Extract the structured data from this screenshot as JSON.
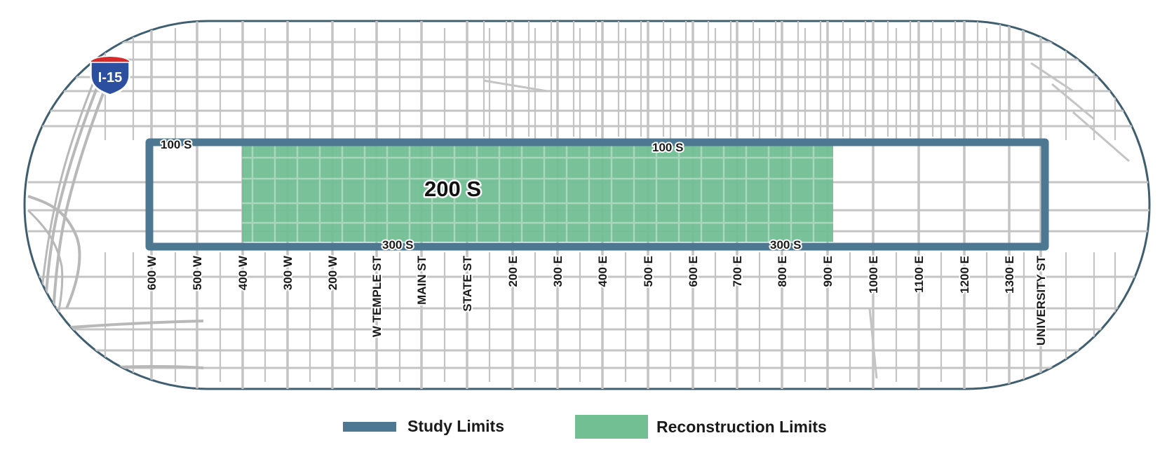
{
  "interstate": {
    "label": "I-15",
    "icon": "interstate-shield-icon"
  },
  "center_label": "200 S",
  "north_labels": [
    "100 S",
    "100 S"
  ],
  "south_labels": [
    "300 S",
    "300 S"
  ],
  "cross_streets": [
    "600 W",
    "500 W",
    "400 W",
    "300 W",
    "200 W",
    "W TEMPLE ST",
    "MAIN ST",
    "STATE ST",
    "200 E",
    "300 E",
    "400 E",
    "500 E",
    "600 E",
    "700 E",
    "800 E",
    "900 E",
    "1000 E",
    "1100 E",
    "1200 E",
    "1300 E",
    "UNIVERSITY ST"
  ],
  "legend": {
    "study_limits": "Study Limits",
    "reconstruction_limits": "Reconstruction Limits"
  },
  "colors": {
    "study_limits": "#4e7891",
    "reconstruction_limits": "#72bf93",
    "streets": "#c4c4c4",
    "frame_border": "#3f5f70",
    "shield_blue": "#2d4fa0",
    "shield_red": "#d72b2b"
  }
}
